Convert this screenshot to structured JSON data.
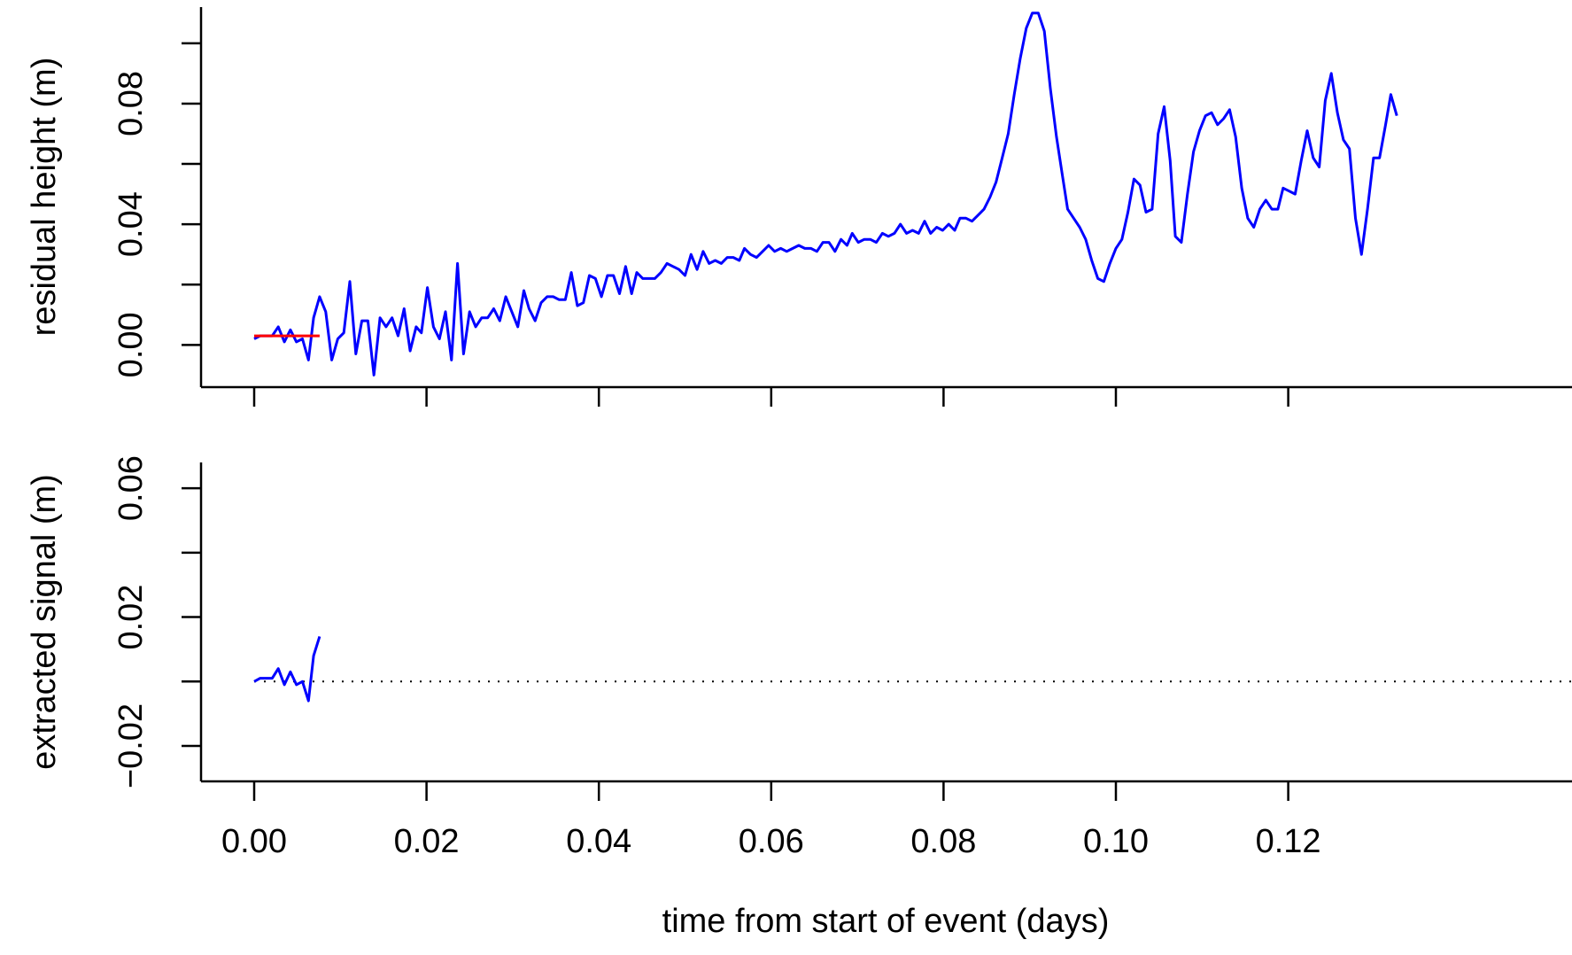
{
  "chart_data": [
    {
      "type": "line",
      "panel": "top",
      "title": "",
      "xlabel": "",
      "ylabel": "residual height  (m)",
      "xlim": [
        0,
        0.1333
      ],
      "ylim": [
        -0.014,
        0.112
      ],
      "x_ticks": [
        0.0,
        0.02,
        0.04,
        0.06,
        0.08,
        0.1,
        0.12
      ],
      "x_tick_labels_shown": false,
      "y_ticks": [
        0.0,
        0.04,
        0.08
      ],
      "y_tick_labels": [
        "0.00",
        "0.04",
        "0.08"
      ],
      "y_minor_ticks": [
        0.02,
        0.06,
        0.1
      ],
      "grid": false,
      "series": [
        {
          "color": "#0000ff",
          "x": [
            0.0,
            0.0007,
            0.0014,
            0.0021,
            0.0028,
            0.0035,
            0.0042,
            0.0049,
            0.0056,
            0.0063,
            0.0069,
            0.0076,
            0.0083,
            0.009,
            0.0097,
            0.0104,
            0.0111,
            0.0118,
            0.0125,
            0.0132,
            0.0139,
            0.0146,
            0.0153,
            0.016,
            0.0167,
            0.0174,
            0.0181,
            0.0188,
            0.0194,
            0.0201,
            0.0208,
            0.0215,
            0.0222,
            0.0229,
            0.0236,
            0.0243,
            0.025,
            0.0257,
            0.0264,
            0.0271,
            0.0278,
            0.0285,
            0.0292,
            0.0299,
            0.0306,
            0.0313,
            0.0319,
            0.0326,
            0.0333,
            0.034,
            0.0347,
            0.0354,
            0.0361,
            0.0368,
            0.0375,
            0.0382,
            0.0389,
            0.0396,
            0.0403,
            0.041,
            0.0417,
            0.0424,
            0.0431,
            0.0438,
            0.0444,
            0.0451,
            0.0458,
            0.0465,
            0.0472,
            0.0479,
            0.0486,
            0.0493,
            0.05,
            0.0507,
            0.0514,
            0.0521,
            0.0528,
            0.0535,
            0.0542,
            0.0549,
            0.0556,
            0.0563,
            0.0569,
            0.0576,
            0.0583,
            0.059,
            0.0597,
            0.0604,
            0.0611,
            0.0618,
            0.0625,
            0.0632,
            0.0639,
            0.0646,
            0.0653,
            0.066,
            0.0667,
            0.0674,
            0.0681,
            0.0688,
            0.0694,
            0.0701,
            0.0708,
            0.0715,
            0.0722,
            0.0729,
            0.0736,
            0.0743,
            0.075,
            0.0757,
            0.0764,
            0.0771,
            0.0778,
            0.0785,
            0.0792,
            0.0799,
            0.0806,
            0.0813,
            0.0819,
            0.0826,
            0.0833,
            0.084,
            0.0847,
            0.0854,
            0.0861,
            0.0868,
            0.0875,
            0.0882,
            0.0889,
            0.0896,
            0.0903,
            0.091,
            0.0917,
            0.0924,
            0.0931,
            0.0938,
            0.0944,
            0.0951,
            0.0958,
            0.0965,
            0.0972,
            0.0979,
            0.0986,
            0.0993,
            0.1,
            0.1007,
            0.1014,
            0.1021,
            0.1028,
            0.1035,
            0.1042,
            0.1049,
            0.1056,
            0.1063,
            0.1069,
            0.1076,
            0.1083,
            0.109,
            0.1097,
            0.1104,
            0.1111,
            0.1118,
            0.1125,
            0.1132,
            0.1139,
            0.1146,
            0.1153,
            0.116,
            0.1167,
            0.1174,
            0.1181,
            0.1188,
            0.1194,
            0.1201,
            0.1208,
            0.1215,
            0.1222,
            0.1229,
            0.1236,
            0.1243,
            0.125,
            0.1257,
            0.1264,
            0.1271,
            0.1278,
            0.1285,
            0.1292,
            0.1299,
            0.1306,
            0.1313,
            0.1319,
            0.1326
          ],
          "y": [
            0.002,
            0.003,
            0.003,
            0.003,
            0.006,
            0.001,
            0.005,
            0.001,
            0.002,
            -0.005,
            0.009,
            0.016,
            0.011,
            -0.005,
            0.002,
            0.004,
            0.021,
            -0.003,
            0.008,
            0.008,
            -0.01,
            0.009,
            0.006,
            0.009,
            0.003,
            0.012,
            -0.002,
            0.006,
            0.004,
            0.019,
            0.006,
            0.002,
            0.011,
            -0.005,
            0.027,
            -0.003,
            0.011,
            0.006,
            0.009,
            0.009,
            0.012,
            0.008,
            0.016,
            0.011,
            0.006,
            0.018,
            0.012,
            0.008,
            0.014,
            0.016,
            0.016,
            0.015,
            0.015,
            0.024,
            0.013,
            0.014,
            0.023,
            0.022,
            0.016,
            0.023,
            0.023,
            0.017,
            0.026,
            0.017,
            0.024,
            0.022,
            0.022,
            0.022,
            0.024,
            0.027,
            0.026,
            0.025,
            0.023,
            0.03,
            0.025,
            0.031,
            0.027,
            0.028,
            0.027,
            0.029,
            0.029,
            0.028,
            0.032,
            0.03,
            0.029,
            0.031,
            0.033,
            0.031,
            0.032,
            0.031,
            0.032,
            0.033,
            0.032,
            0.032,
            0.031,
            0.034,
            0.034,
            0.031,
            0.035,
            0.033,
            0.037,
            0.034,
            0.035,
            0.035,
            0.034,
            0.037,
            0.036,
            0.037,
            0.04,
            0.037,
            0.038,
            0.037,
            0.041,
            0.037,
            0.039,
            0.038,
            0.04,
            0.038,
            0.042,
            0.042,
            0.041,
            0.043,
            0.045,
            0.049,
            0.054,
            0.062,
            0.07,
            0.083,
            0.095,
            0.105,
            0.11,
            0.11,
            0.104,
            0.085,
            0.069,
            0.056,
            0.045,
            0.042,
            0.039,
            0.035,
            0.028,
            0.022,
            0.021,
            0.027,
            0.032,
            0.035,
            0.044,
            0.055,
            0.053,
            0.044,
            0.045,
            0.07,
            0.079,
            0.061,
            0.036,
            0.034,
            0.05,
            0.064,
            0.071,
            0.076,
            0.077,
            0.073,
            0.075,
            0.078,
            0.069,
            0.052,
            0.042,
            0.039,
            0.045,
            0.048,
            0.045,
            0.045,
            0.052,
            0.051,
            0.05,
            0.061,
            0.071,
            0.062,
            0.059,
            0.081,
            0.09,
            0.077,
            0.068,
            0.065,
            0.042,
            0.03,
            0.045,
            0.062,
            0.062,
            0.073,
            0.083,
            0.076
          ]
        },
        {
          "color": "#ff0000",
          "x": [
            0.0,
            0.0076
          ],
          "y": [
            0.003,
            0.003
          ]
        }
      ]
    },
    {
      "type": "line",
      "panel": "bottom",
      "title": "",
      "xlabel": "time from start of event  (days)",
      "ylabel": "extracted signal  (m)",
      "xlim": [
        0,
        0.1333
      ],
      "ylim": [
        -0.031,
        0.068
      ],
      "x_ticks": [
        0.0,
        0.02,
        0.04,
        0.06,
        0.08,
        0.1,
        0.12
      ],
      "x_tick_labels": [
        "0.00",
        "0.02",
        "0.04",
        "0.06",
        "0.08",
        "0.10",
        "0.12"
      ],
      "y_ticks": [
        -0.02,
        0.02,
        0.06
      ],
      "y_tick_labels": [
        "−0.02",
        "0.02",
        "0.06"
      ],
      "y_minor_ticks": [
        0.0,
        0.04
      ],
      "grid": false,
      "reference_line": {
        "y": 0.0,
        "style": "dotted",
        "color": "#000000"
      },
      "series": [
        {
          "color": "#0000ff",
          "x": [
            0.0,
            0.0007,
            0.0014,
            0.0021,
            0.0028,
            0.0035,
            0.0042,
            0.0049,
            0.0056,
            0.0063,
            0.0069,
            0.0076
          ],
          "y": [
            0.0,
            0.001,
            0.001,
            0.001,
            0.004,
            -0.001,
            0.003,
            -0.001,
            0.0,
            -0.006,
            0.008,
            0.014
          ]
        }
      ]
    }
  ]
}
